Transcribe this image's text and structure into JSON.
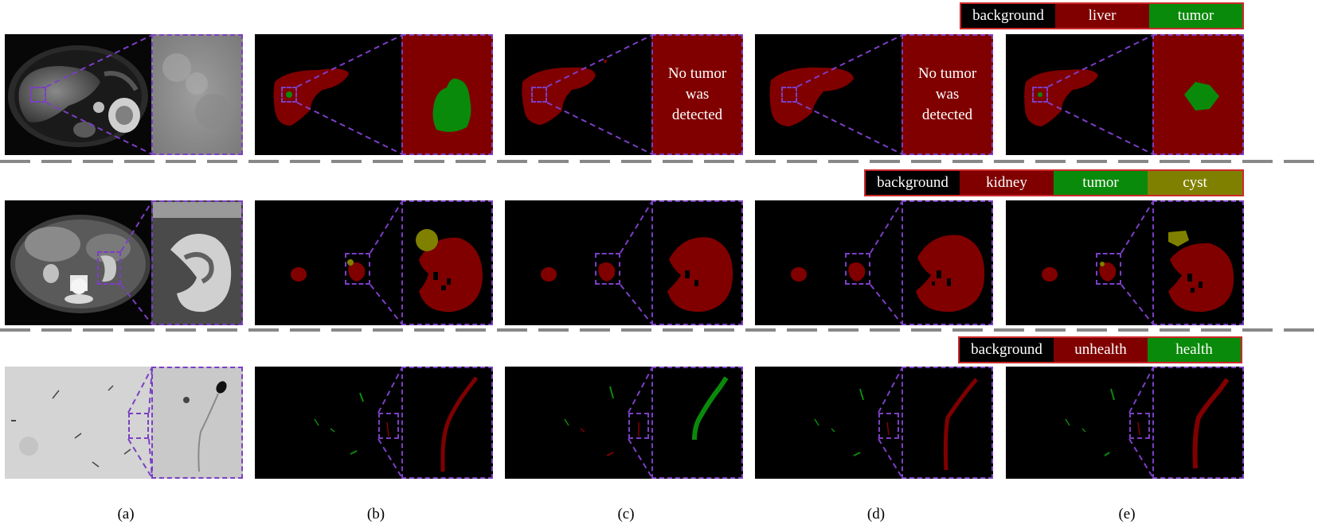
{
  "legends": {
    "liver": {
      "items": [
        "background",
        "liver",
        "tumor"
      ],
      "colors": [
        "#000000",
        "#800000",
        "#0a8a0a"
      ]
    },
    "kidney": {
      "items": [
        "background",
        "kidney",
        "tumor",
        "cyst"
      ],
      "colors": [
        "#000000",
        "#800000",
        "#0a8a0a",
        "#808000"
      ]
    },
    "sperm": {
      "items": [
        "background",
        "unhealth",
        "health"
      ],
      "colors": [
        "#000000",
        "#800000",
        "#0a8a0a"
      ]
    }
  },
  "rows": {
    "liver": {
      "no_tumor_c": "No tumor was detected",
      "no_tumor_d": "No tumor was detected"
    }
  },
  "captions": [
    "(a)",
    "(b)",
    "(c)",
    "(d)",
    "(e)"
  ],
  "colors": {
    "zoom_outline": "#7b3fc4",
    "separator": "#888888",
    "label_red": "#800000",
    "label_green": "#0a8a0a",
    "label_olive": "#808000"
  }
}
